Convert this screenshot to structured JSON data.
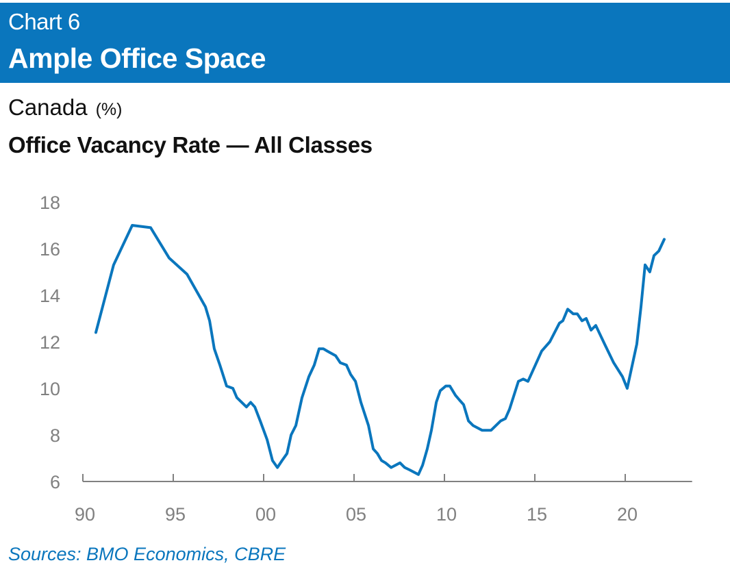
{
  "header": {
    "chart_number": "Chart 6",
    "title": "Ample Office Space"
  },
  "colors": {
    "header_band": "#0a76bd",
    "line": "#0a76bd",
    "axis": "#808080",
    "source_text": "#0a76bd"
  },
  "chart_data": {
    "type": "line",
    "region": "Canada",
    "unit": "(%)",
    "title": "Office Vacancy Rate — All Classes",
    "xlabel": "",
    "ylabel": "",
    "xlim": [
      1990,
      2023.7
    ],
    "ylim": [
      6,
      18
    ],
    "grid": false,
    "x_ticks": [
      1990,
      1995,
      2000,
      2005,
      2010,
      2015,
      2020
    ],
    "x_tick_labels": [
      "90",
      "95",
      "00",
      "05",
      "10",
      "15",
      "20"
    ],
    "y_ticks": [
      6,
      8,
      10,
      12,
      14,
      16,
      18
    ],
    "y_tick_labels": [
      "6",
      "8",
      "10",
      "12",
      "14",
      "16",
      "18"
    ],
    "series": [
      {
        "name": "Office Vacancy Rate — All Classes",
        "x": [
          1990.72,
          1991.7,
          1992.73,
          1993.75,
          1994.77,
          1995.76,
          1996.78,
          1997.01,
          1997.27,
          1997.58,
          1997.95,
          1998.3,
          1998.52,
          1999.05,
          1999.28,
          1999.51,
          1999.81,
          2000.19,
          2000.49,
          2000.76,
          2001.02,
          2001.29,
          2001.52,
          2001.78,
          2002.12,
          2002.5,
          2002.8,
          2003.07,
          2003.3,
          2003.52,
          2003.98,
          2004.24,
          2004.58,
          2004.81,
          2005.08,
          2005.38,
          2005.8,
          2006.06,
          2006.29,
          2006.52,
          2006.74,
          2007.05,
          2007.54,
          2007.8,
          2008.07,
          2008.56,
          2008.79,
          2009.05,
          2009.28,
          2009.55,
          2009.77,
          2010.08,
          2010.3,
          2010.61,
          2010.83,
          2011.06,
          2011.33,
          2011.59,
          2012.08,
          2012.58,
          2013.11,
          2013.37,
          2013.6,
          2014.09,
          2014.36,
          2014.62,
          2015.38,
          2015.83,
          2016.36,
          2016.55,
          2016.82,
          2017.12,
          2017.35,
          2017.61,
          2017.84,
          2018.11,
          2018.37,
          2018.86,
          2019.36,
          2019.85,
          2020.11,
          2020.64,
          2020.87,
          2021.1,
          2021.36,
          2021.59,
          2021.86,
          2022.16
        ],
        "values": [
          12.4,
          15.3,
          17.0,
          16.9,
          15.6,
          14.9,
          13.5,
          12.9,
          11.7,
          11.0,
          10.1,
          10.0,
          9.6,
          9.2,
          9.4,
          9.2,
          8.6,
          7.8,
          6.9,
          6.6,
          6.9,
          7.2,
          8.0,
          8.4,
          9.6,
          10.5,
          11.0,
          11.7,
          11.7,
          11.6,
          11.4,
          11.1,
          11.0,
          10.6,
          10.3,
          9.4,
          8.4,
          7.4,
          7.2,
          6.9,
          6.8,
          6.6,
          6.8,
          6.6,
          6.5,
          6.3,
          6.7,
          7.4,
          8.2,
          9.4,
          9.9,
          10.1,
          10.1,
          9.7,
          9.5,
          9.3,
          8.6,
          8.4,
          8.2,
          8.2,
          8.6,
          8.7,
          9.1,
          10.3,
          10.4,
          10.3,
          11.6,
          12.0,
          12.8,
          12.9,
          13.4,
          13.2,
          13.2,
          12.9,
          13.0,
          12.5,
          12.7,
          11.9,
          11.1,
          10.5,
          10.0,
          11.9,
          13.5,
          15.3,
          15.0,
          15.7,
          15.9,
          16.4
        ]
      }
    ]
  },
  "footer": {
    "source": "Sources: BMO Economics, CBRE"
  }
}
